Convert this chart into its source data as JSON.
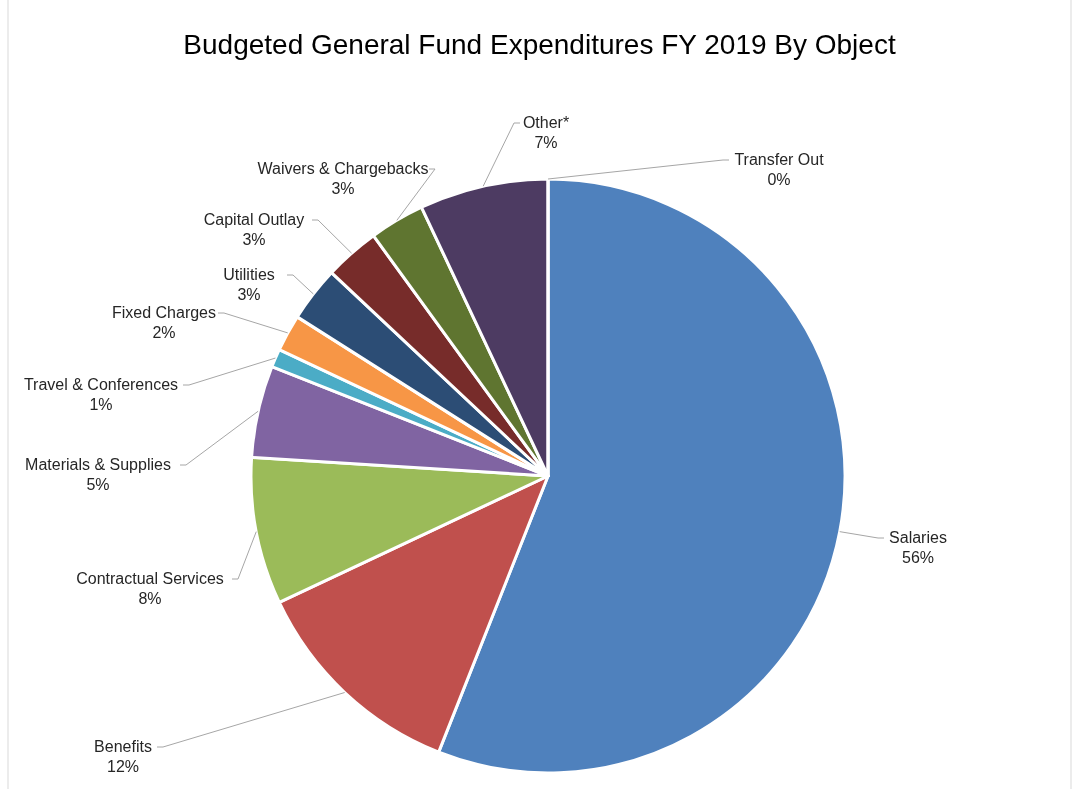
{
  "chart_data": {
    "type": "pie",
    "title": "Budgeted General Fund Expenditures FY 2019 By Object",
    "categories": [
      "Salaries",
      "Benefits",
      "Contractual Services",
      "Materials & Supplies",
      "Travel & Conferences",
      "Fixed Charges",
      "Utilities",
      "Capital Outlay",
      "Waivers & Chargebacks",
      "Other*",
      "Transfer Out"
    ],
    "values": [
      56,
      12,
      8,
      5,
      1,
      2,
      3,
      3,
      3,
      7,
      0
    ],
    "value_labels": [
      "56%",
      "12%",
      "8%",
      "5%",
      "1%",
      "2%",
      "3%",
      "3%",
      "3%",
      "7%",
      "0%"
    ],
    "colors": [
      "#4f81bd",
      "#c0504d",
      "#9bbb59",
      "#8064a2",
      "#4bacc6",
      "#f79646",
      "#2c4d75",
      "#772c2a",
      "#5f7530",
      "#4d3b62",
      "#729aca"
    ]
  }
}
